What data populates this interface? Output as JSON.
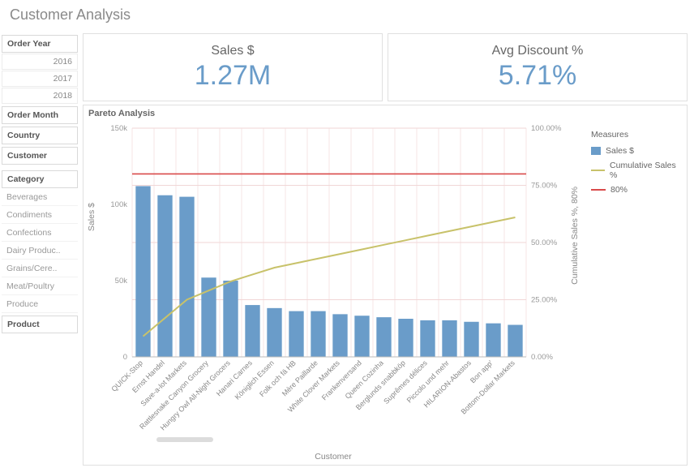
{
  "page": {
    "title": "Customer Analysis"
  },
  "filters": {
    "order_year": {
      "label": "Order Year",
      "items": [
        "2016",
        "2017",
        "2018"
      ]
    },
    "order_month": {
      "label": "Order Month"
    },
    "country": {
      "label": "Country"
    },
    "customer": {
      "label": "Customer"
    },
    "category": {
      "label": "Category",
      "items": [
        "Beverages",
        "Condiments",
        "Confections",
        "Dairy Produc..",
        "Grains/Cere..",
        "Meat/Poultry",
        "Produce"
      ]
    },
    "product": {
      "label": "Product"
    }
  },
  "kpis": {
    "sales": {
      "label": "Sales $",
      "value": "1.27M"
    },
    "discount": {
      "label": "Avg Discount %",
      "value": "5.71%"
    }
  },
  "chart": {
    "title": "Pareto Analysis",
    "type": "bar+line",
    "bar_color": "#6a9cc9",
    "cumulative_color": "#c8c26a",
    "threshold_color": "#d94a4a",
    "grid_color": "#f1d6d6",
    "axis_color": "#888888",
    "background": "#ffffff",
    "y_left": {
      "label": "Sales $",
      "min": 0,
      "max": 150000,
      "ticks": [
        0,
        50000,
        100000,
        150000
      ],
      "tick_labels": [
        "0",
        "50k",
        "100k",
        "150k"
      ]
    },
    "y_right": {
      "label": "Cumulative Sales %, 80%",
      "min": 0,
      "max": 100,
      "ticks": [
        0,
        25,
        50,
        75,
        100
      ],
      "tick_labels": [
        "0.00%",
        "25.00%",
        "50.00%",
        "75.00%",
        "100.00%"
      ]
    },
    "x_label": "Customer",
    "threshold_pct": 80,
    "categories": [
      "QUICK-Stop",
      "Ernst Handel",
      "Save-a-lot Markets",
      "Rattlesnake Canyon Grocery",
      "Hungry Owl All-Night Grocers",
      "Hanari Carnes",
      "Königlich Essen",
      "Folk och fä HB",
      "Mère Paillarde",
      "White Clover Markets",
      "Frankenversand",
      "Queen Cozinha",
      "Berglunds snabbköp",
      "Suprêmes délices",
      "Piccolo und mehr",
      "HILARION-Abastos",
      "Bon app'",
      "Bottom-Dollar Markets"
    ],
    "bar_values": [
      112000,
      106000,
      105000,
      52000,
      50000,
      34000,
      32000,
      30000,
      30000,
      28000,
      27000,
      26000,
      25000,
      24000,
      24000,
      23000,
      22000,
      21000
    ],
    "cumulative_pct": [
      9,
      17,
      25,
      29,
      33,
      36,
      39,
      41,
      43,
      45,
      47,
      49,
      51,
      53,
      55,
      57,
      59,
      61
    ],
    "legend": {
      "title": "Measures",
      "bar": "Sales $",
      "line": "Cumulative Sales %",
      "thresh": "80%"
    }
  }
}
